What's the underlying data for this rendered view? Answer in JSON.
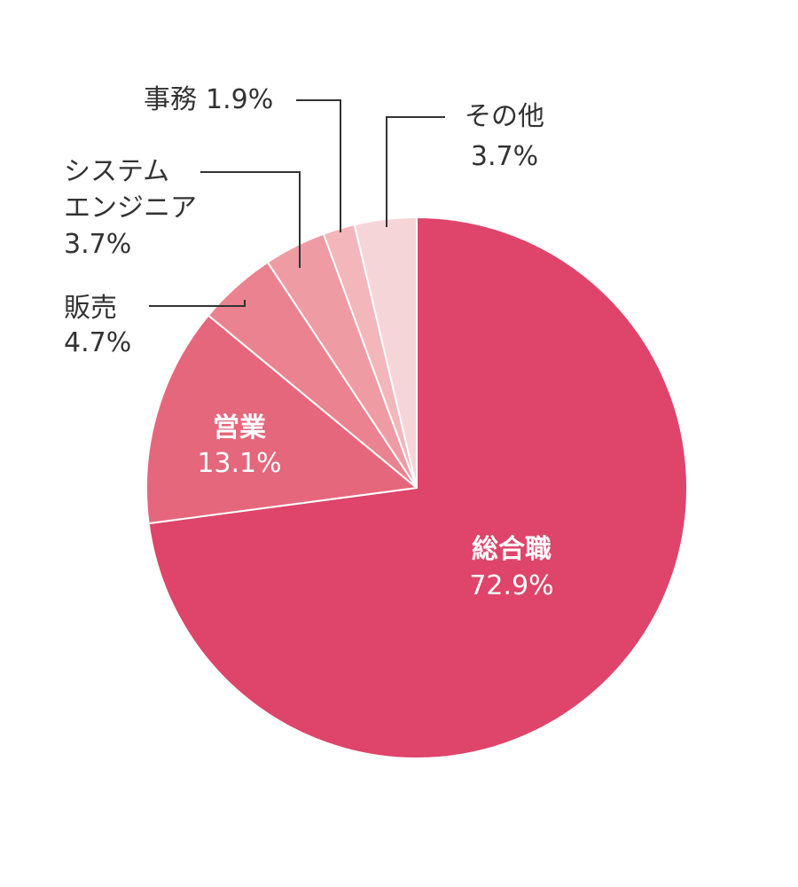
{
  "chart_data": {
    "type": "pie",
    "start_angle_deg": 0,
    "direction": "clockwise",
    "slices": [
      {
        "label": "総合職",
        "value": 72.9,
        "value_label": "72.9%",
        "color": "#df446a"
      },
      {
        "label": "営業",
        "value": 13.1,
        "value_label": "13.1%",
        "color": "#e5677c"
      },
      {
        "label": "販売",
        "value": 4.7,
        "value_label": "4.7%",
        "color": "#ea838f"
      },
      {
        "label_lines": [
          "システム",
          "エンジニア"
        ],
        "value": 3.7,
        "value_label": "3.7%",
        "color": "#ee9ba4"
      },
      {
        "label": "事務",
        "value": 1.9,
        "value_label": "1.9%",
        "color": "#f2b6bb"
      },
      {
        "label": "その他",
        "value": 3.7,
        "value_label": "3.7%",
        "color": "#f6d5d8"
      }
    ]
  }
}
